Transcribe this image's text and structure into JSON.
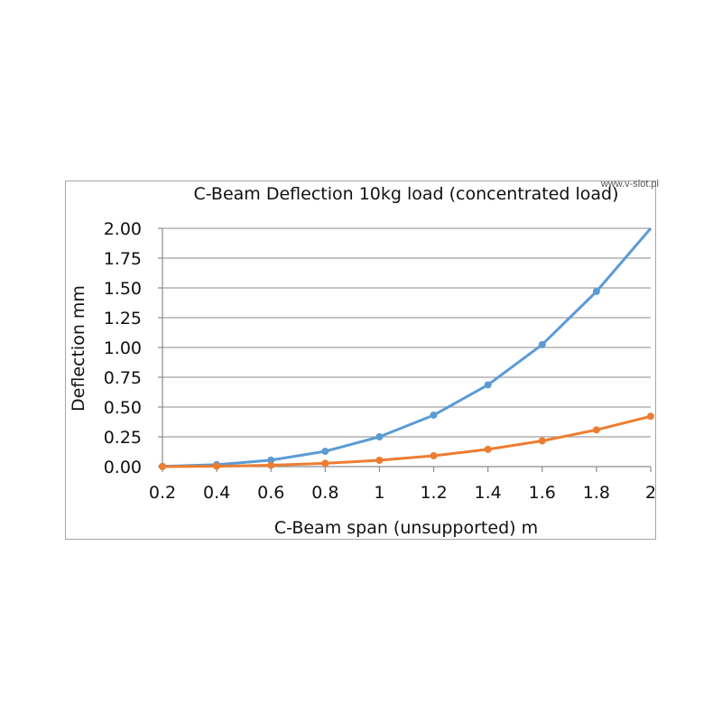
{
  "watermark": "www.v-slot.pl",
  "chart_data": {
    "type": "line",
    "title": "C-Beam Deflection 10kg load (concentrated load)",
    "xlabel": "C-Beam span (unsupported) m",
    "ylabel": "Deflection mm",
    "x": [
      0.2,
      0.4,
      0.6,
      0.8,
      1,
      1.2,
      1.4,
      1.6,
      1.8,
      2
    ],
    "x_tick_labels": [
      "0.2",
      "0.4",
      "0.6",
      "0.8",
      "1",
      "1.2",
      "1.4",
      "1.6",
      "1.8",
      "2"
    ],
    "y_tick_labels": [
      "0.00",
      "0.25",
      "0.50",
      "0.75",
      "1.00",
      "1.25",
      "1.50",
      "1.75",
      "2.00"
    ],
    "ylim": [
      0,
      2
    ],
    "y_ticks": [
      0,
      0.25,
      0.5,
      0.75,
      1,
      1.25,
      1.5,
      1.75,
      2
    ],
    "grid": true,
    "legend": "none",
    "series": [
      {
        "color": "#5b9bd5",
        "values": [
          0.002,
          0.016,
          0.054,
          0.128,
          0.25,
          0.432,
          0.686,
          1.024,
          1.47,
          2.0
        ]
      },
      {
        "color": "#ed7d31",
        "values": [
          0.0003,
          0.003,
          0.011,
          0.027,
          0.053,
          0.091,
          0.145,
          0.216,
          0.308,
          0.422
        ]
      }
    ]
  }
}
